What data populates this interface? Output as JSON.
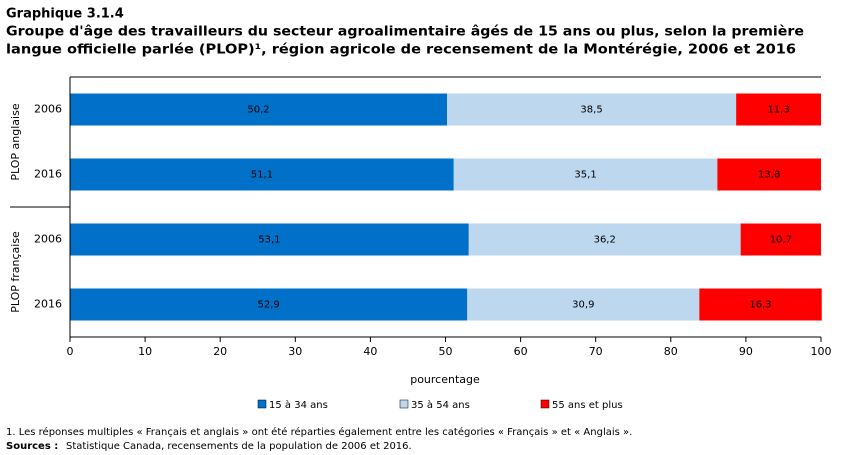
{
  "chart_data": {
    "type": "bar",
    "orientation": "horizontal",
    "stacked": true,
    "title": "Graphique 3.1.4",
    "subtitle_lines": [
      "Groupe d'âge des travailleurs du secteur agroalimentaire âgés de 15 ans ou plus, selon la première",
      "langue officielle parlée (PLOP)¹, région agricole de recensement de la Montérégie, 2006 et 2016"
    ],
    "groups": [
      {
        "name": "PLOP anglaise",
        "categories": [
          "2006",
          "2016"
        ]
      },
      {
        "name": "PLOP française",
        "categories": [
          "2006",
          "2016"
        ]
      }
    ],
    "series": [
      {
        "name": "15 à 34 ans",
        "color": "#0070c8",
        "label_color": "#ffffff",
        "values": [
          50.2,
          51.1,
          53.1,
          52.9
        ],
        "value_labels": [
          "50,2",
          "51,1",
          "53,1",
          "52,9"
        ]
      },
      {
        "name": "35 à 54 ans",
        "color": "#bdd7ee",
        "label_color": "#000000",
        "values": [
          38.5,
          35.1,
          36.2,
          30.9
        ],
        "value_labels": [
          "38,5",
          "35,1",
          "36,2",
          "30,9"
        ]
      },
      {
        "name": "55 ans et plus",
        "color": "#ff0000",
        "label_color": "#ffffff",
        "values": [
          11.3,
          13.8,
          10.7,
          16.3
        ],
        "value_labels": [
          "11,3",
          "13,8",
          "10,7",
          "16,3"
        ]
      }
    ],
    "xlim": [
      0,
      100
    ],
    "xticks": [
      0,
      10,
      20,
      30,
      40,
      50,
      60,
      70,
      80,
      90,
      100
    ],
    "x_label": "pourcentage",
    "footnote": "1. Les réponses multiples « Français et anglais » ont été réparties également entre les catégories « Français » et « Anglais ».",
    "source_label": "Sources :",
    "source_text": "Statistique Canada, recensements de la population de 2006 et 2016."
  }
}
